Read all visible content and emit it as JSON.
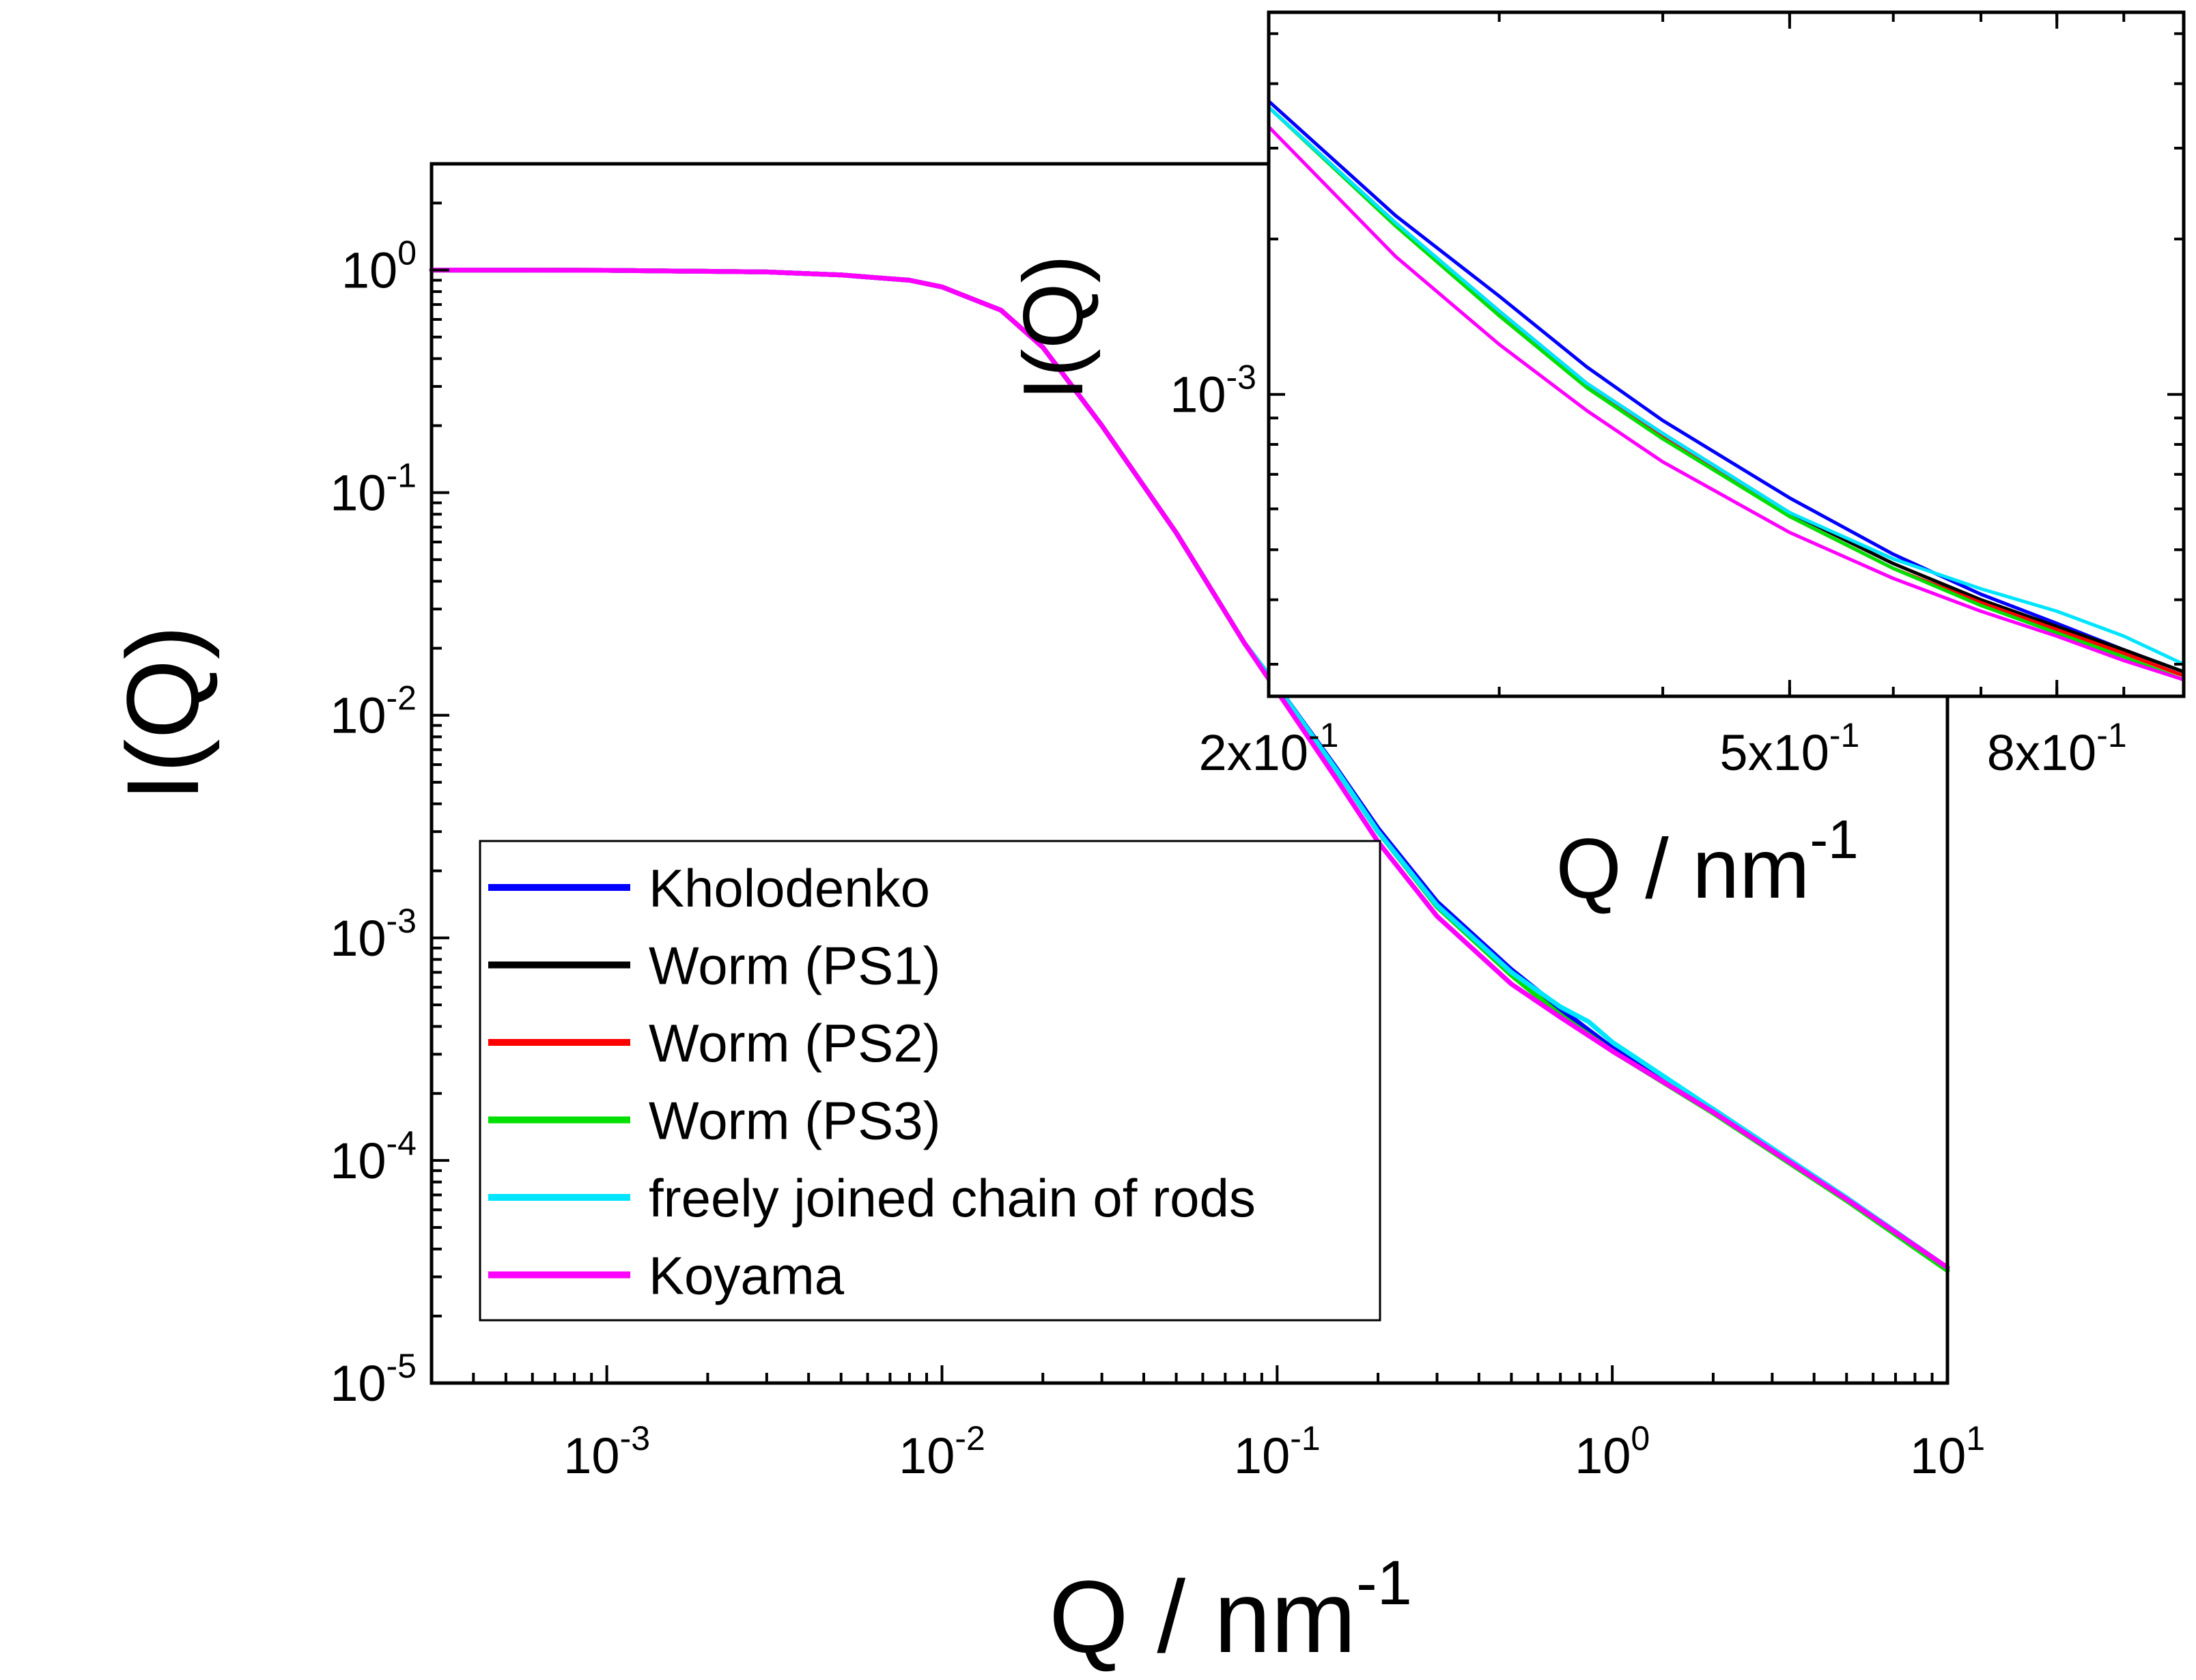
{
  "chart_data": [
    {
      "type": "line",
      "role": "main",
      "xscale": "log",
      "yscale": "log",
      "xlim": [
        0.0003,
        10
      ],
      "ylim": [
        1e-05,
        3
      ],
      "xlabel": {
        "base": "Q / nm",
        "sup": "-1"
      },
      "ylabel": "I(Q)",
      "xticks": [
        {
          "value": 0.001,
          "base": "10",
          "sup": "-3"
        },
        {
          "value": 0.01,
          "base": "10",
          "sup": "-2"
        },
        {
          "value": 0.1,
          "base": "10",
          "sup": "-1"
        },
        {
          "value": 1,
          "base": "10",
          "sup": "0"
        },
        {
          "value": 10,
          "base": "10",
          "sup": "1"
        }
      ],
      "yticks": [
        {
          "value": 1,
          "base": "10",
          "sup": "0"
        },
        {
          "value": 0.1,
          "base": "10",
          "sup": "-1"
        },
        {
          "value": 0.01,
          "base": "10",
          "sup": "-2"
        },
        {
          "value": 0.001,
          "base": "10",
          "sup": "-3"
        },
        {
          "value": 0.0001,
          "base": "10",
          "sup": "-4"
        },
        {
          "value": 1e-05,
          "base": "10",
          "sup": "-5"
        }
      ],
      "legend": {
        "placement": "lower-left"
      },
      "series": [
        {
          "name": "Kholodenko",
          "color": "#0000ff",
          "x": [
            0.0003,
            0.001,
            0.003,
            0.005,
            0.008,
            0.01,
            0.015,
            0.02,
            0.03,
            0.05,
            0.08,
            0.1,
            0.15,
            0.2,
            0.3,
            0.5,
            0.7,
            1,
            2,
            5,
            10
          ],
          "y": [
            1.0,
            0.997,
            0.98,
            0.95,
            0.9,
            0.84,
            0.66,
            0.45,
            0.2,
            0.066,
            0.021,
            0.0135,
            0.0058,
            0.0031,
            0.00145,
            0.00072,
            0.00048,
            0.00032,
            0.00017,
            6.8e-05,
            3.3e-05
          ]
        },
        {
          "name": "Worm (PS1)",
          "color": "#000000",
          "x": [
            0.0003,
            0.001,
            0.003,
            0.005,
            0.008,
            0.01,
            0.015,
            0.02,
            0.03,
            0.05,
            0.08,
            0.1,
            0.15,
            0.2,
            0.3,
            0.5,
            0.7,
            1,
            2,
            5,
            10
          ],
          "y": [
            1.0,
            0.997,
            0.98,
            0.95,
            0.9,
            0.84,
            0.66,
            0.45,
            0.2,
            0.066,
            0.021,
            0.0135,
            0.0057,
            0.003,
            0.0014,
            0.00069,
            0.00045,
            0.00031,
            0.000165,
            6.7e-05,
            3.3e-05
          ]
        },
        {
          "name": "Worm (PS2)",
          "color": "#ff0000",
          "x": [
            0.0003,
            0.001,
            0.003,
            0.005,
            0.008,
            0.01,
            0.015,
            0.02,
            0.03,
            0.05,
            0.08,
            0.1,
            0.15,
            0.2,
            0.3,
            0.5,
            0.7,
            1,
            2,
            5,
            10
          ],
          "y": [
            1.0,
            0.997,
            0.98,
            0.95,
            0.9,
            0.84,
            0.66,
            0.45,
            0.2,
            0.066,
            0.021,
            0.0134,
            0.0057,
            0.003,
            0.00138,
            0.00068,
            0.00045,
            0.00031,
            0.000165,
            6.7e-05,
            3.3e-05
          ]
        },
        {
          "name": "Worm (PS3)",
          "color": "#00e000",
          "x": [
            0.0003,
            0.001,
            0.003,
            0.005,
            0.008,
            0.01,
            0.015,
            0.02,
            0.03,
            0.05,
            0.08,
            0.1,
            0.15,
            0.2,
            0.3,
            0.5,
            0.7,
            1,
            2,
            5,
            10
          ],
          "y": [
            1.0,
            0.997,
            0.98,
            0.95,
            0.9,
            0.84,
            0.66,
            0.45,
            0.2,
            0.066,
            0.021,
            0.0134,
            0.0057,
            0.003,
            0.00138,
            0.00068,
            0.00045,
            0.00031,
            0.000163,
            6.6e-05,
            3.2e-05
          ]
        },
        {
          "name": "freely joined chain of rods",
          "color": "#00e5ff",
          "x": [
            0.0003,
            0.001,
            0.003,
            0.005,
            0.008,
            0.01,
            0.015,
            0.02,
            0.03,
            0.05,
            0.08,
            0.1,
            0.15,
            0.2,
            0.3,
            0.5,
            0.7,
            0.85,
            1,
            2,
            5,
            10
          ],
          "y": [
            1.0,
            0.997,
            0.98,
            0.95,
            0.9,
            0.84,
            0.66,
            0.45,
            0.2,
            0.066,
            0.021,
            0.0135,
            0.0057,
            0.003,
            0.0014,
            0.0007,
            0.00049,
            0.00042,
            0.00034,
            0.00017,
            6.8e-05,
            3.3e-05
          ]
        },
        {
          "name": "Koyama",
          "color": "#ff00ff",
          "x": [
            0.0003,
            0.001,
            0.003,
            0.005,
            0.008,
            0.01,
            0.015,
            0.02,
            0.03,
            0.05,
            0.08,
            0.1,
            0.15,
            0.2,
            0.3,
            0.5,
            0.7,
            1,
            2,
            5,
            10
          ],
          "y": [
            1.0,
            0.997,
            0.98,
            0.95,
            0.9,
            0.84,
            0.66,
            0.45,
            0.2,
            0.066,
            0.021,
            0.0128,
            0.0052,
            0.0027,
            0.00125,
            0.00062,
            0.00044,
            0.00031,
            0.000165,
            6.7e-05,
            3.3e-05
          ]
        }
      ]
    },
    {
      "type": "line",
      "role": "inset",
      "xscale": "log",
      "yscale": "log",
      "xlim": [
        0.2,
        1.0
      ],
      "ylim": [
        0.00026,
        0.0055
      ],
      "xlabel": {
        "base": "Q / nm",
        "sup": "-1"
      },
      "ylabel": "I(Q)",
      "xticks": [
        {
          "value": 0.2,
          "base": "2x10",
          "sup": "-1"
        },
        {
          "value": 0.5,
          "base": "5x10",
          "sup": "-1"
        },
        {
          "value": 0.8,
          "base": "8x10",
          "sup": "-1"
        }
      ],
      "yticks": [
        {
          "value": 0.001,
          "base": "10",
          "sup": "-3"
        }
      ],
      "series": [
        {
          "name": "Kholodenko",
          "color": "#0000ff",
          "x": [
            0.2,
            0.25,
            0.3,
            0.35,
            0.4,
            0.5,
            0.6,
            0.7,
            0.8,
            0.9,
            1.0
          ],
          "y": [
            0.0037,
            0.00222,
            0.00155,
            0.00113,
            0.00089,
            0.00063,
            0.00049,
            0.00041,
            0.00036,
            0.00032,
            0.00029
          ]
        },
        {
          "name": "Worm (PS1)",
          "color": "#000000",
          "x": [
            0.2,
            0.25,
            0.3,
            0.35,
            0.4,
            0.5,
            0.6,
            0.7,
            0.8,
            0.9,
            1.0
          ],
          "y": [
            0.0036,
            0.00215,
            0.00145,
            0.00105,
            0.00084,
            0.00059,
            0.00047,
            0.0004,
            0.000355,
            0.00032,
            0.00029
          ]
        },
        {
          "name": "Worm (PS2)",
          "color": "#ff0000",
          "x": [
            0.2,
            0.25,
            0.3,
            0.35,
            0.4,
            0.5,
            0.6,
            0.7,
            0.8,
            0.9,
            1.0
          ],
          "y": [
            0.0036,
            0.00213,
            0.00143,
            0.00104,
            0.00083,
            0.00058,
            0.00046,
            0.000395,
            0.00035,
            0.000315,
            0.000285
          ]
        },
        {
          "name": "Worm (PS3)",
          "color": "#00e000",
          "x": [
            0.2,
            0.25,
            0.3,
            0.35,
            0.4,
            0.5,
            0.6,
            0.7,
            0.8,
            0.9,
            1.0
          ],
          "y": [
            0.0036,
            0.00212,
            0.00142,
            0.00103,
            0.00082,
            0.00058,
            0.00046,
            0.00039,
            0.000345,
            0.00031,
            0.00028
          ]
        },
        {
          "name": "freely joined chain of rods",
          "color": "#00e5ff",
          "x": [
            0.2,
            0.25,
            0.3,
            0.35,
            0.4,
            0.5,
            0.6,
            0.7,
            0.8,
            0.9,
            1.0
          ],
          "y": [
            0.0036,
            0.00215,
            0.00145,
            0.00105,
            0.00084,
            0.00059,
            0.00048,
            0.00042,
            0.00038,
            0.00034,
            0.0003
          ]
        },
        {
          "name": "Koyama",
          "color": "#ff00ff",
          "x": [
            0.2,
            0.25,
            0.3,
            0.35,
            0.4,
            0.5,
            0.6,
            0.7,
            0.8,
            0.9,
            1.0
          ],
          "y": [
            0.0033,
            0.00185,
            0.00125,
            0.00093,
            0.00074,
            0.00054,
            0.00044,
            0.00038,
            0.00034,
            0.000305,
            0.00028
          ]
        }
      ]
    }
  ]
}
